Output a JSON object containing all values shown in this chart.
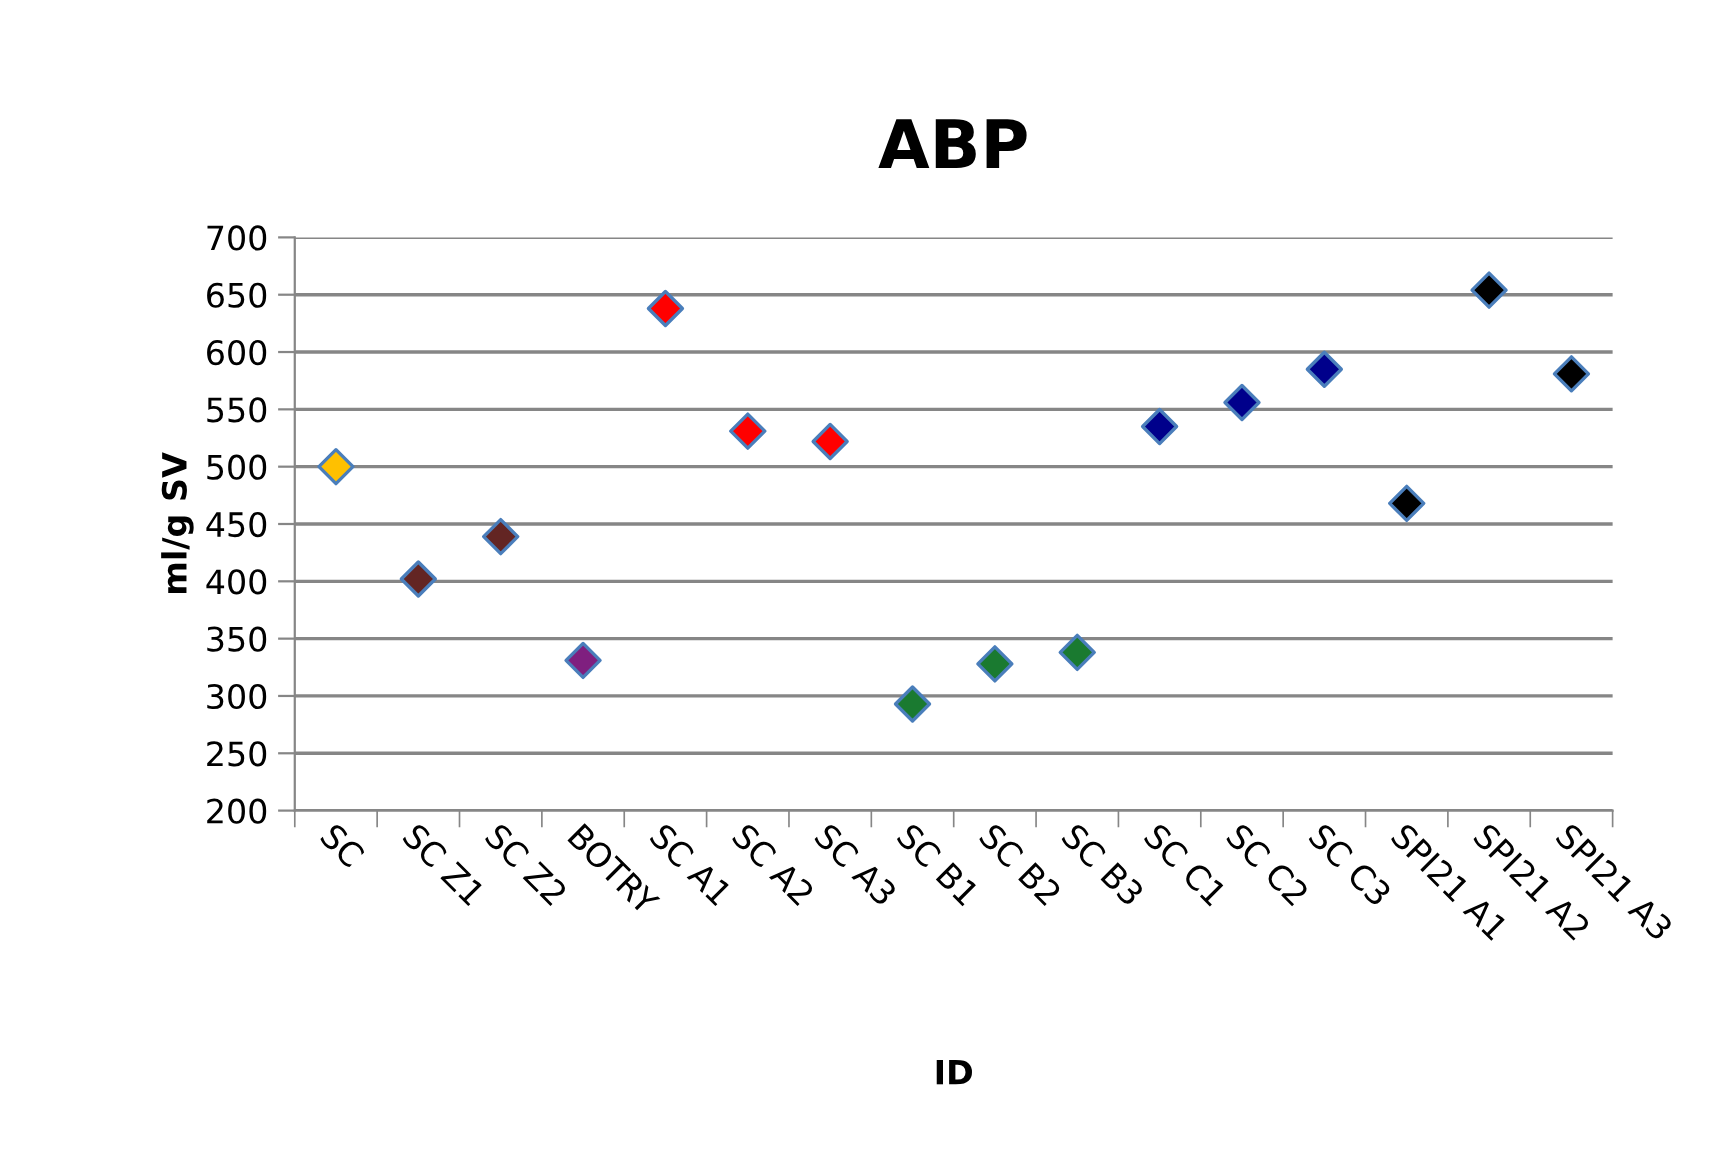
{
  "chart_data": {
    "type": "scatter",
    "title": "ABP",
    "xlabel": "ID",
    "ylabel": "ml/g SV",
    "categories": [
      "SC",
      "SC Z1",
      "SC Z2",
      "BOTRY",
      "SC A1",
      "SC A2",
      "SC A3",
      "SC B1",
      "SC B2",
      "SC B3",
      "SC C1",
      "SC C2",
      "SC C3",
      "SPI21 A1",
      "SPI21 A2",
      "SPI21 A3"
    ],
    "values": [
      500,
      402,
      439,
      331,
      638,
      531,
      522,
      293,
      328,
      338,
      535,
      556,
      585,
      468,
      654,
      581
    ],
    "colors": [
      "#ffc000",
      "#632523",
      "#632523",
      "#7f1f7f",
      "#ff0000",
      "#ff0000",
      "#ff0000",
      "#1a7a30",
      "#1a7a30",
      "#1a7a30",
      "#00008b",
      "#00008b",
      "#00008b",
      "#000000",
      "#000000",
      "#000000"
    ],
    "marker": "diamond",
    "ylim": [
      200,
      700
    ],
    "yticks": [
      200,
      250,
      300,
      350,
      400,
      450,
      500,
      550,
      600,
      650,
      700
    ],
    "grid": "y",
    "legend": false
  }
}
